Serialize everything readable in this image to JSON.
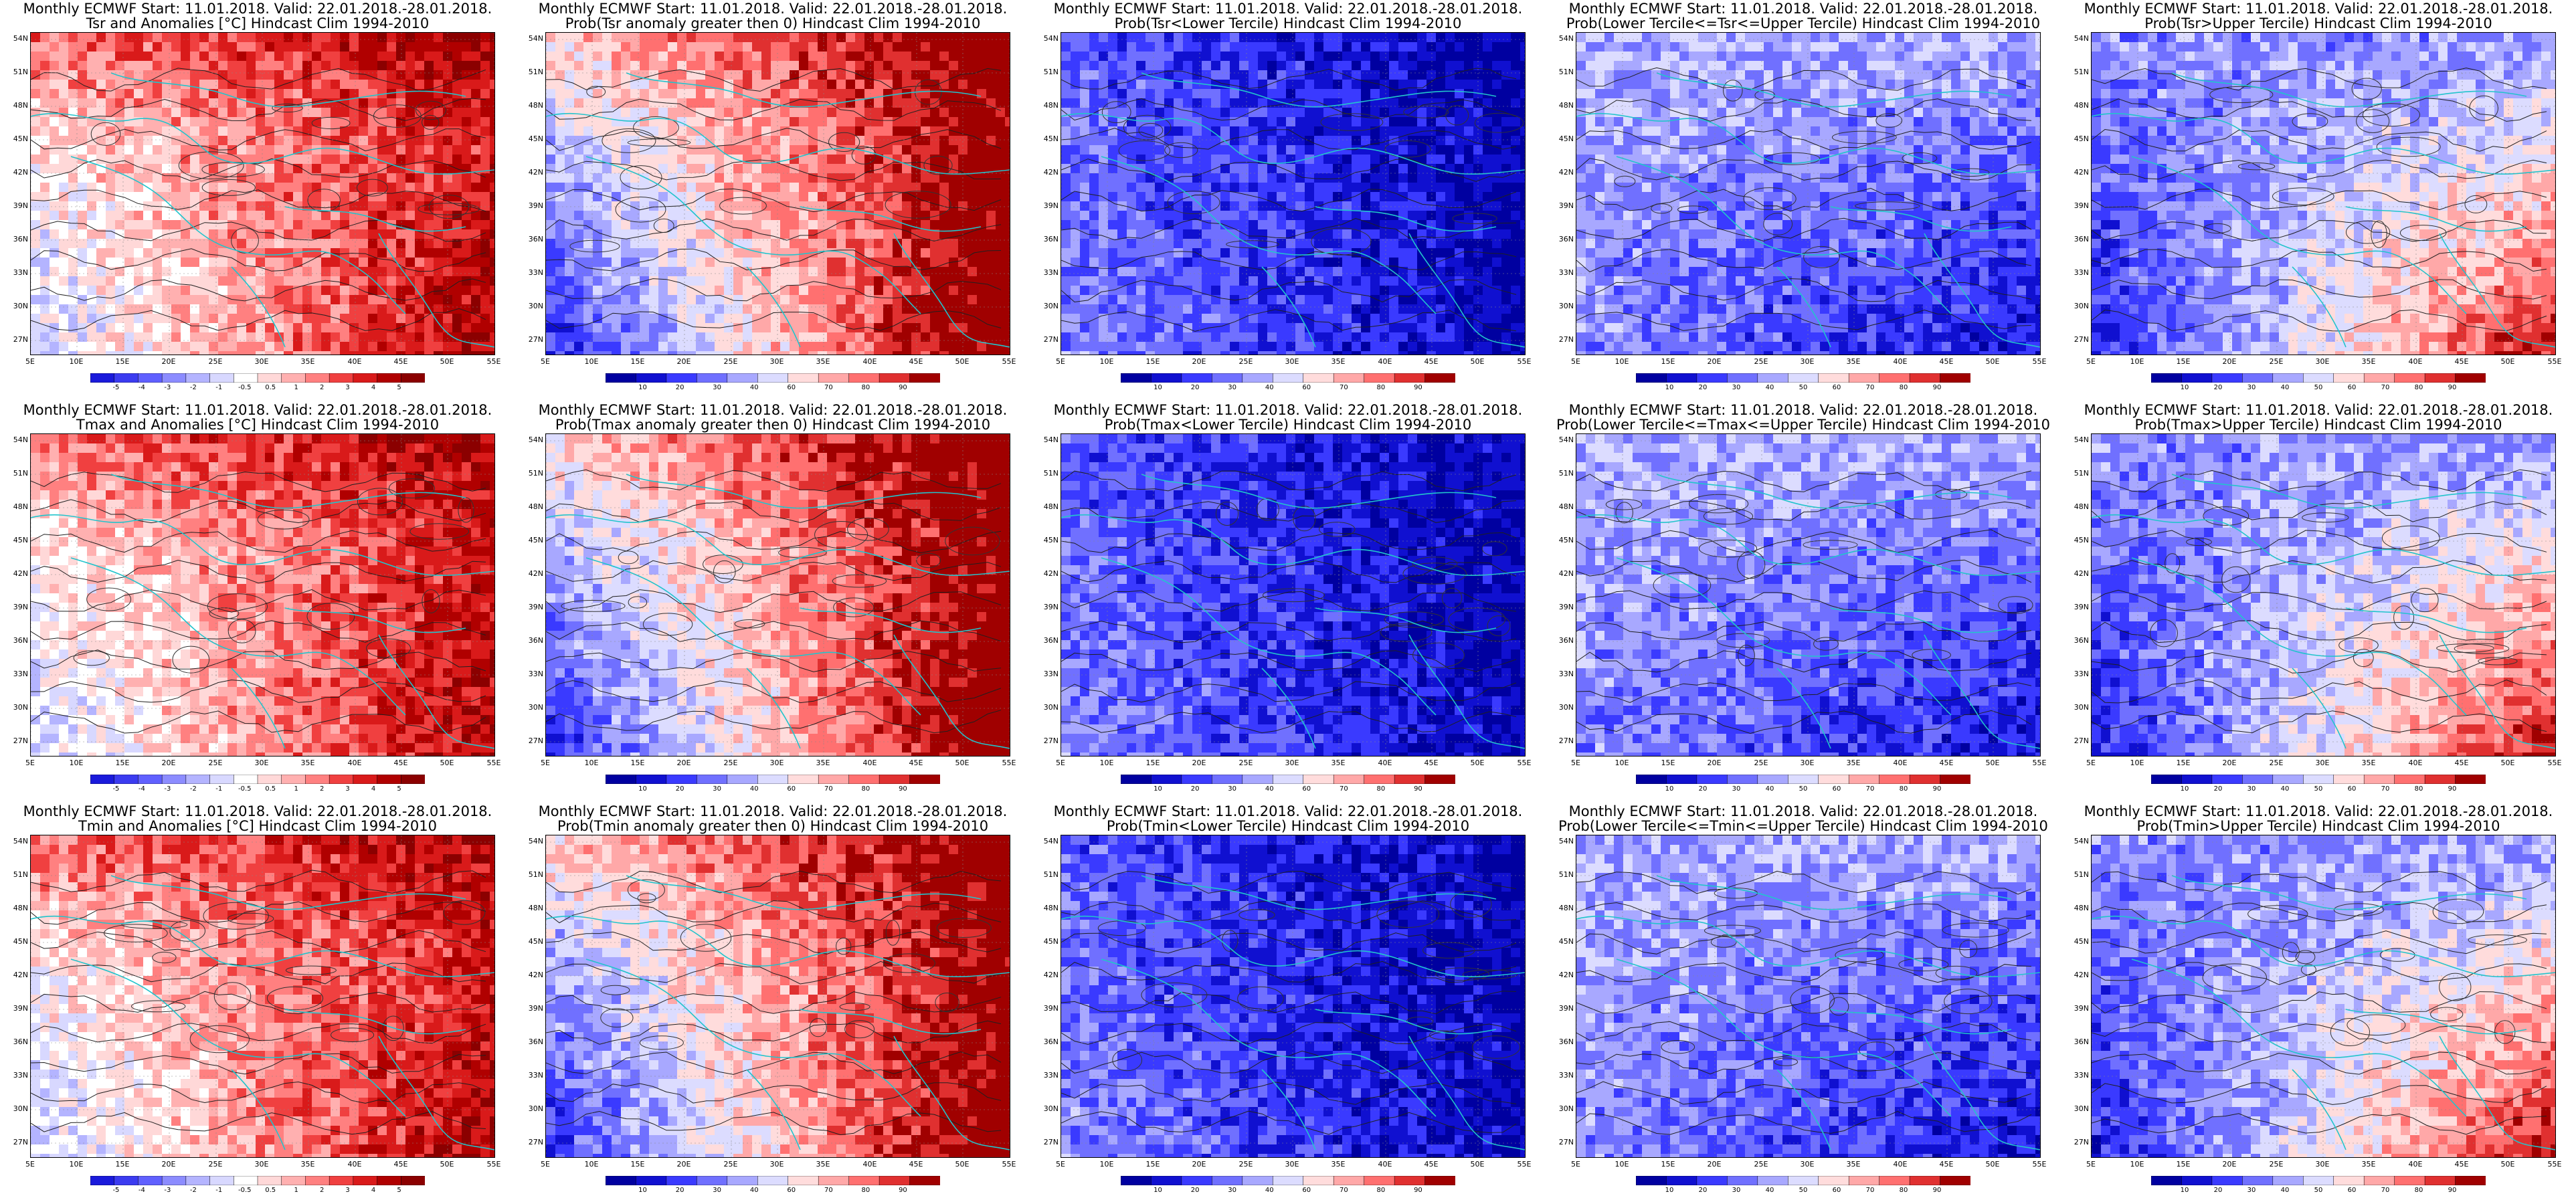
{
  "layout": {
    "rows": 3,
    "cols": 5
  },
  "lat_labels": [
    "54N",
    "51N",
    "48N",
    "45N",
    "42N",
    "39N",
    "36N",
    "33N",
    "30N",
    "27N"
  ],
  "lon_labels": [
    "5E",
    "10E",
    "15E",
    "20E",
    "25E",
    "30E",
    "35E",
    "40E",
    "45E",
    "50E",
    "55E"
  ],
  "colorbars": {
    "anomaly": {
      "colors": [
        "#1a1adb",
        "#3b3bf0",
        "#6060ff",
        "#8c8cff",
        "#b4b4ff",
        "#d8d8ff",
        "#ffffff",
        "#ffd8d8",
        "#ffb0b0",
        "#ff8080",
        "#f04040",
        "#d91a1a",
        "#b00000",
        "#8b0000"
      ],
      "labels": [
        "-5",
        "-4",
        "-3",
        "-2",
        "-1",
        "-0.5",
        "0.5",
        "1",
        "2",
        "3",
        "4",
        "5"
      ]
    },
    "probability": {
      "colors": [
        "#0000a0",
        "#1010d0",
        "#3a3aff",
        "#7070ff",
        "#a8a8ff",
        "#dcdcff",
        "#ffdcdc",
        "#ffa8a8",
        "#ff7070",
        "#e03030",
        "#a00000"
      ],
      "labels": [
        "10",
        "20",
        "30",
        "40",
        "60",
        "70",
        "80",
        "90"
      ]
    },
    "probability_short": {
      "colors": [
        "#0000a0",
        "#1010d0",
        "#3a3aff",
        "#7070ff",
        "#a8a8ff",
        "#dcdcff",
        "#ffdcdc",
        "#ffa8a8",
        "#ff7070",
        "#e03030",
        "#a00000"
      ],
      "labels": [
        "10",
        "20",
        "30",
        "40",
        "50",
        "60",
        "70",
        "80",
        "90"
      ]
    }
  },
  "panels": [
    {
      "line1": "Monthly ECMWF Start: 11.01.2018. Valid: 22.01.2018.-28.01.2018.",
      "line2": "Tsr and Anomalies [°C] Hindcast Clim 1994-2010",
      "bar": "anomaly",
      "pattern": "anomaly",
      "seed": 11
    },
    {
      "line1": "Monthly ECMWF Start: 11.01.2018. Valid: 22.01.2018.-28.01.2018.",
      "line2": "Prob(Tsr anomaly greater then 0) Hindcast Clim 1994-2010",
      "bar": "probability",
      "pattern": "prob_warm",
      "seed": 12
    },
    {
      "line1": "Monthly ECMWF Start: 11.01.2018. Valid: 22.01.2018.-28.01.2018.",
      "line2": "Prob(Tsr<Lower Tercile) Hindcast Clim 1994-2010",
      "bar": "probability",
      "pattern": "prob_lower",
      "seed": 13
    },
    {
      "line1": "Monthly ECMWF Start: 11.01.2018. Valid: 22.01.2018.-28.01.2018.",
      "line2": "Prob(Lower Tercile<=Tsr<=Upper Tercile) Hindcast Clim 1994-2010",
      "bar": "probability_short",
      "pattern": "prob_middle",
      "seed": 14
    },
    {
      "line1": "Monthly ECMWF Start: 11.01.2018. Valid: 22.01.2018.-28.01.2018.",
      "line2": "Prob(Tsr>Upper Tercile) Hindcast Clim 1994-2010",
      "bar": "probability_short",
      "pattern": "prob_upper",
      "seed": 15
    },
    {
      "line1": "Monthly ECMWF Start: 11.01.2018. Valid: 22.01.2018.-28.01.2018.",
      "line2": "Tmax and Anomalies [°C] Hindcast Clim 1994-2010",
      "bar": "anomaly",
      "pattern": "anomaly",
      "seed": 21
    },
    {
      "line1": "Monthly ECMWF Start: 11.01.2018. Valid: 22.01.2018.-28.01.2018.",
      "line2": "Prob(Tmax anomaly greater then 0) Hindcast Clim 1994-2010",
      "bar": "probability",
      "pattern": "prob_warm",
      "seed": 22
    },
    {
      "line1": "Monthly ECMWF Start: 11.01.2018. Valid: 22.01.2018.-28.01.2018.",
      "line2": "Prob(Tmax<Lower Tercile) Hindcast Clim 1994-2010",
      "bar": "probability",
      "pattern": "prob_lower",
      "seed": 23
    },
    {
      "line1": "Monthly ECMWF Start: 11.01.2018. Valid: 22.01.2018.-28.01.2018.",
      "line2": "Prob(Lower Tercile<=Tmax<=Upper Tercile) Hindcast Clim 1994-2010",
      "bar": "probability_short",
      "pattern": "prob_middle",
      "seed": 24
    },
    {
      "line1": "Monthly ECMWF Start: 11.01.2018. Valid: 22.01.2018.-28.01.2018.",
      "line2": "Prob(Tmax>Upper Tercile) Hindcast Clim 1994-2010",
      "bar": "probability_short",
      "pattern": "prob_upper",
      "seed": 25
    },
    {
      "line1": "Monthly ECMWF Start: 11.01.2018. Valid: 22.01.2018.-28.01.2018.",
      "line2": "Tmin and Anomalies [°C] Hindcast Clim 1994-2010",
      "bar": "anomaly",
      "pattern": "anomaly",
      "seed": 31
    },
    {
      "line1": "Monthly ECMWF Start: 11.01.2018. Valid: 22.01.2018.-28.01.2018.",
      "line2": "Prob(Tmin anomaly greater then 0) Hindcast Clim 1994-2010",
      "bar": "probability",
      "pattern": "prob_warm",
      "seed": 32
    },
    {
      "line1": "Monthly ECMWF Start: 11.01.2018. Valid: 22.01.2018.-28.01.2018.",
      "line2": "Prob(Tmin<Lower Tercile) Hindcast Clim 1994-2010",
      "bar": "probability",
      "pattern": "prob_lower",
      "seed": 33
    },
    {
      "line1": "Monthly ECMWF Start: 11.01.2018. Valid: 22.01.2018.-28.01.2018.",
      "line2": "Prob(Lower Tercile<=Tmin<=Upper Tercile) Hindcast Clim 1994-2010",
      "bar": "probability_short",
      "pattern": "prob_middle",
      "seed": 34
    },
    {
      "line1": "Monthly ECMWF Start: 11.01.2018. Valid: 22.01.2018.-28.01.2018.",
      "line2": "Prob(Tmin>Upper Tercile) Hindcast Clim 1994-2010",
      "bar": "probability_short",
      "pattern": "prob_upper",
      "seed": 35
    }
  ]
}
